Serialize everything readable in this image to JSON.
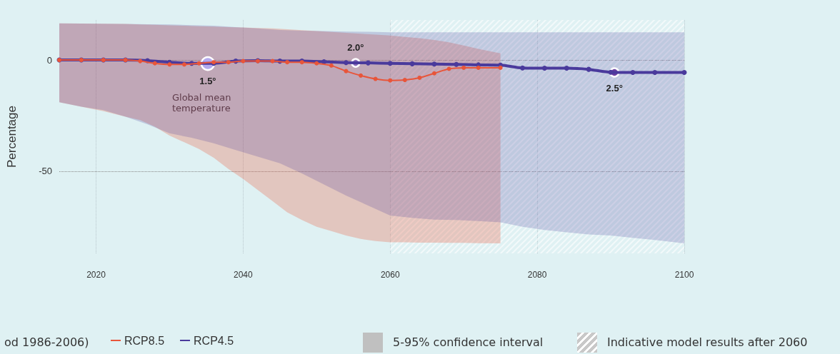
{
  "chart_data": {
    "type": "line",
    "ylabel": "Percentage",
    "legend_title": "od 1986-2006)",
    "xlim": [
      2015,
      2100
    ],
    "xticks": [
      2020,
      2040,
      2060,
      2080,
      2100
    ],
    "ylim": [
      -87,
      18
    ],
    "yticks": [
      0,
      -50
    ],
    "grid": true,
    "legend": "bottom",
    "marker": "circle",
    "series": [
      {
        "name": "RCP8.5",
        "color": "#e8553a",
        "x": [
          2015,
          2018,
          2021,
          2024,
          2026,
          2028,
          2030,
          2032,
          2034,
          2036,
          2038,
          2040,
          2042,
          2044,
          2046,
          2048,
          2050,
          2052,
          2054,
          2056,
          2058,
          2060,
          2062,
          2064,
          2066,
          2068,
          2070,
          2072,
          2075
        ],
        "values": [
          0,
          0,
          0,
          0,
          -0.5,
          -1.5,
          -2,
          -2,
          -1.5,
          -1,
          -1,
          -0.5,
          -0.5,
          -0.5,
          -1,
          -1,
          -1.5,
          -2.5,
          -5,
          -7,
          -8.5,
          -9.2,
          -9,
          -8,
          -6,
          -4,
          -3.5,
          -3.5,
          -3.5
        ],
        "upper": [
          16.5,
          16.4,
          16.3,
          16.2,
          16,
          15.8,
          15.6,
          15.4,
          15.2,
          15,
          14.8,
          14.6,
          14.4,
          14.2,
          13.8,
          13.4,
          13,
          12.6,
          12.2,
          11.8,
          11.4,
          11,
          10.4,
          9.8,
          9,
          8,
          6.5,
          5,
          3
        ],
        "lower": [
          -19,
          -21,
          -23,
          -25.5,
          -27,
          -30,
          -34,
          -37,
          -40,
          -44,
          -49,
          -53.5,
          -58.5,
          -63.5,
          -68.5,
          -72,
          -75,
          -77,
          -79,
          -80.5,
          -81.5,
          -82,
          -82,
          -82.2,
          -82.2,
          -82.3,
          -82.3,
          -82.4,
          -82.5
        ]
      },
      {
        "name": "RCP4.5",
        "color": "#4a3a9c",
        "x": [
          2015,
          2018,
          2021,
          2024,
          2027,
          2030,
          2033,
          2036,
          2039,
          2042,
          2045,
          2048,
          2051,
          2054,
          2057,
          2060,
          2063,
          2066,
          2069,
          2072,
          2075,
          2078,
          2081,
          2084,
          2087,
          2090,
          2093,
          2096,
          2100
        ],
        "values": [
          0,
          0,
          0,
          0,
          -0.3,
          -1,
          -1.5,
          -1.5,
          -0.5,
          -0.3,
          -0.5,
          -0.5,
          -0.8,
          -1.2,
          -1.3,
          -1.5,
          -1.7,
          -1.8,
          -2,
          -2.2,
          -2.3,
          -3.6,
          -3.7,
          -3.7,
          -4.2,
          -5.5,
          -5.6,
          -5.6,
          -5.6
        ],
        "upper": [
          16.5,
          16.4,
          16.3,
          16.2,
          16.1,
          16,
          15.7,
          15.4,
          14.8,
          14.2,
          13.5,
          13.2,
          13,
          12.8,
          12.7,
          12.5,
          12.5,
          12.5,
          12.5,
          12.5,
          12.5,
          12.5,
          12.5,
          12.5,
          12.5,
          12.5,
          12.5,
          12.5,
          12.5
        ],
        "lower": [
          -19,
          -21,
          -22.5,
          -25.5,
          -29,
          -33,
          -35,
          -37.5,
          -40.5,
          -43.5,
          -46.5,
          -51,
          -56,
          -61,
          -65.5,
          -70,
          -71,
          -71.8,
          -72,
          -72.5,
          -73,
          -75,
          -76.5,
          -77.5,
          -78.5,
          -79,
          -80,
          -81,
          -82.5
        ]
      }
    ],
    "bands": [
      {
        "axis": "x",
        "from": 2060,
        "to": 2100,
        "label": "Indicative model results after 2060"
      }
    ],
    "annotations": [
      {
        "text": "1.5°",
        "x": 2035.2,
        "y": -1.6
      },
      {
        "text": "2.0°",
        "x": 2055.3,
        "y": -1.3
      },
      {
        "text": "2.5°",
        "x": 2090.5,
        "y": -5.6
      },
      "Global mean temperature",
      "5-95% confidence interval"
    ]
  }
}
